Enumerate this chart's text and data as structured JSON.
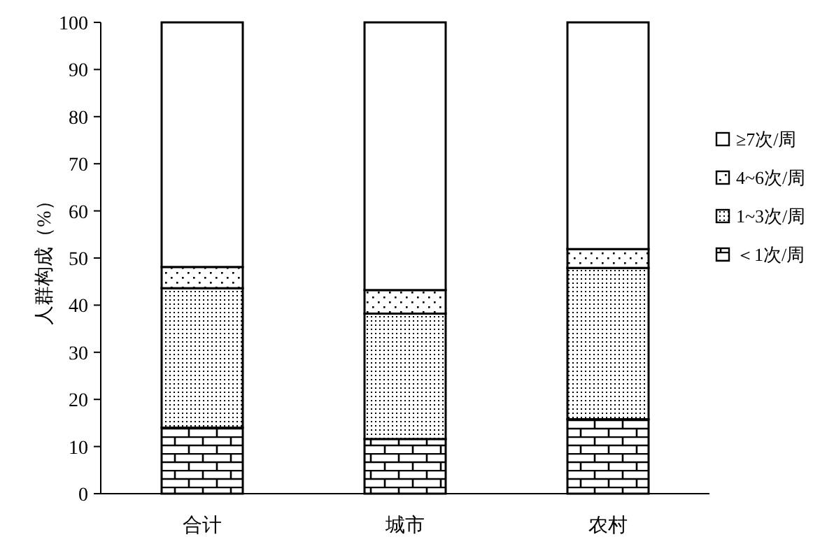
{
  "chart_data": {
    "type": "bar",
    "stacked": true,
    "ylabel": "人群构成（%）",
    "categories": [
      "合计",
      "城市",
      "农村"
    ],
    "series": [
      {
        "name": "＜1次/周",
        "color": "#000000",
        "values": [
          14.0,
          11.6,
          15.8
        ]
      },
      {
        "name": "1~3次/周",
        "color": "#000000",
        "values": [
          29.6,
          26.6,
          32.1
        ]
      },
      {
        "name": "4~6次/周",
        "color": "#000000",
        "values": [
          4.5,
          5.0,
          4.0
        ]
      },
      {
        "name": "≥7次/周",
        "color": "#ffffff",
        "values": [
          51.9,
          56.8,
          48.1
        ]
      }
    ],
    "ylim": [
      0,
      100
    ],
    "yticks": [
      0,
      10,
      20,
      30,
      40,
      50,
      60,
      70,
      80,
      90,
      100
    ],
    "grid": false,
    "legend": "right"
  }
}
